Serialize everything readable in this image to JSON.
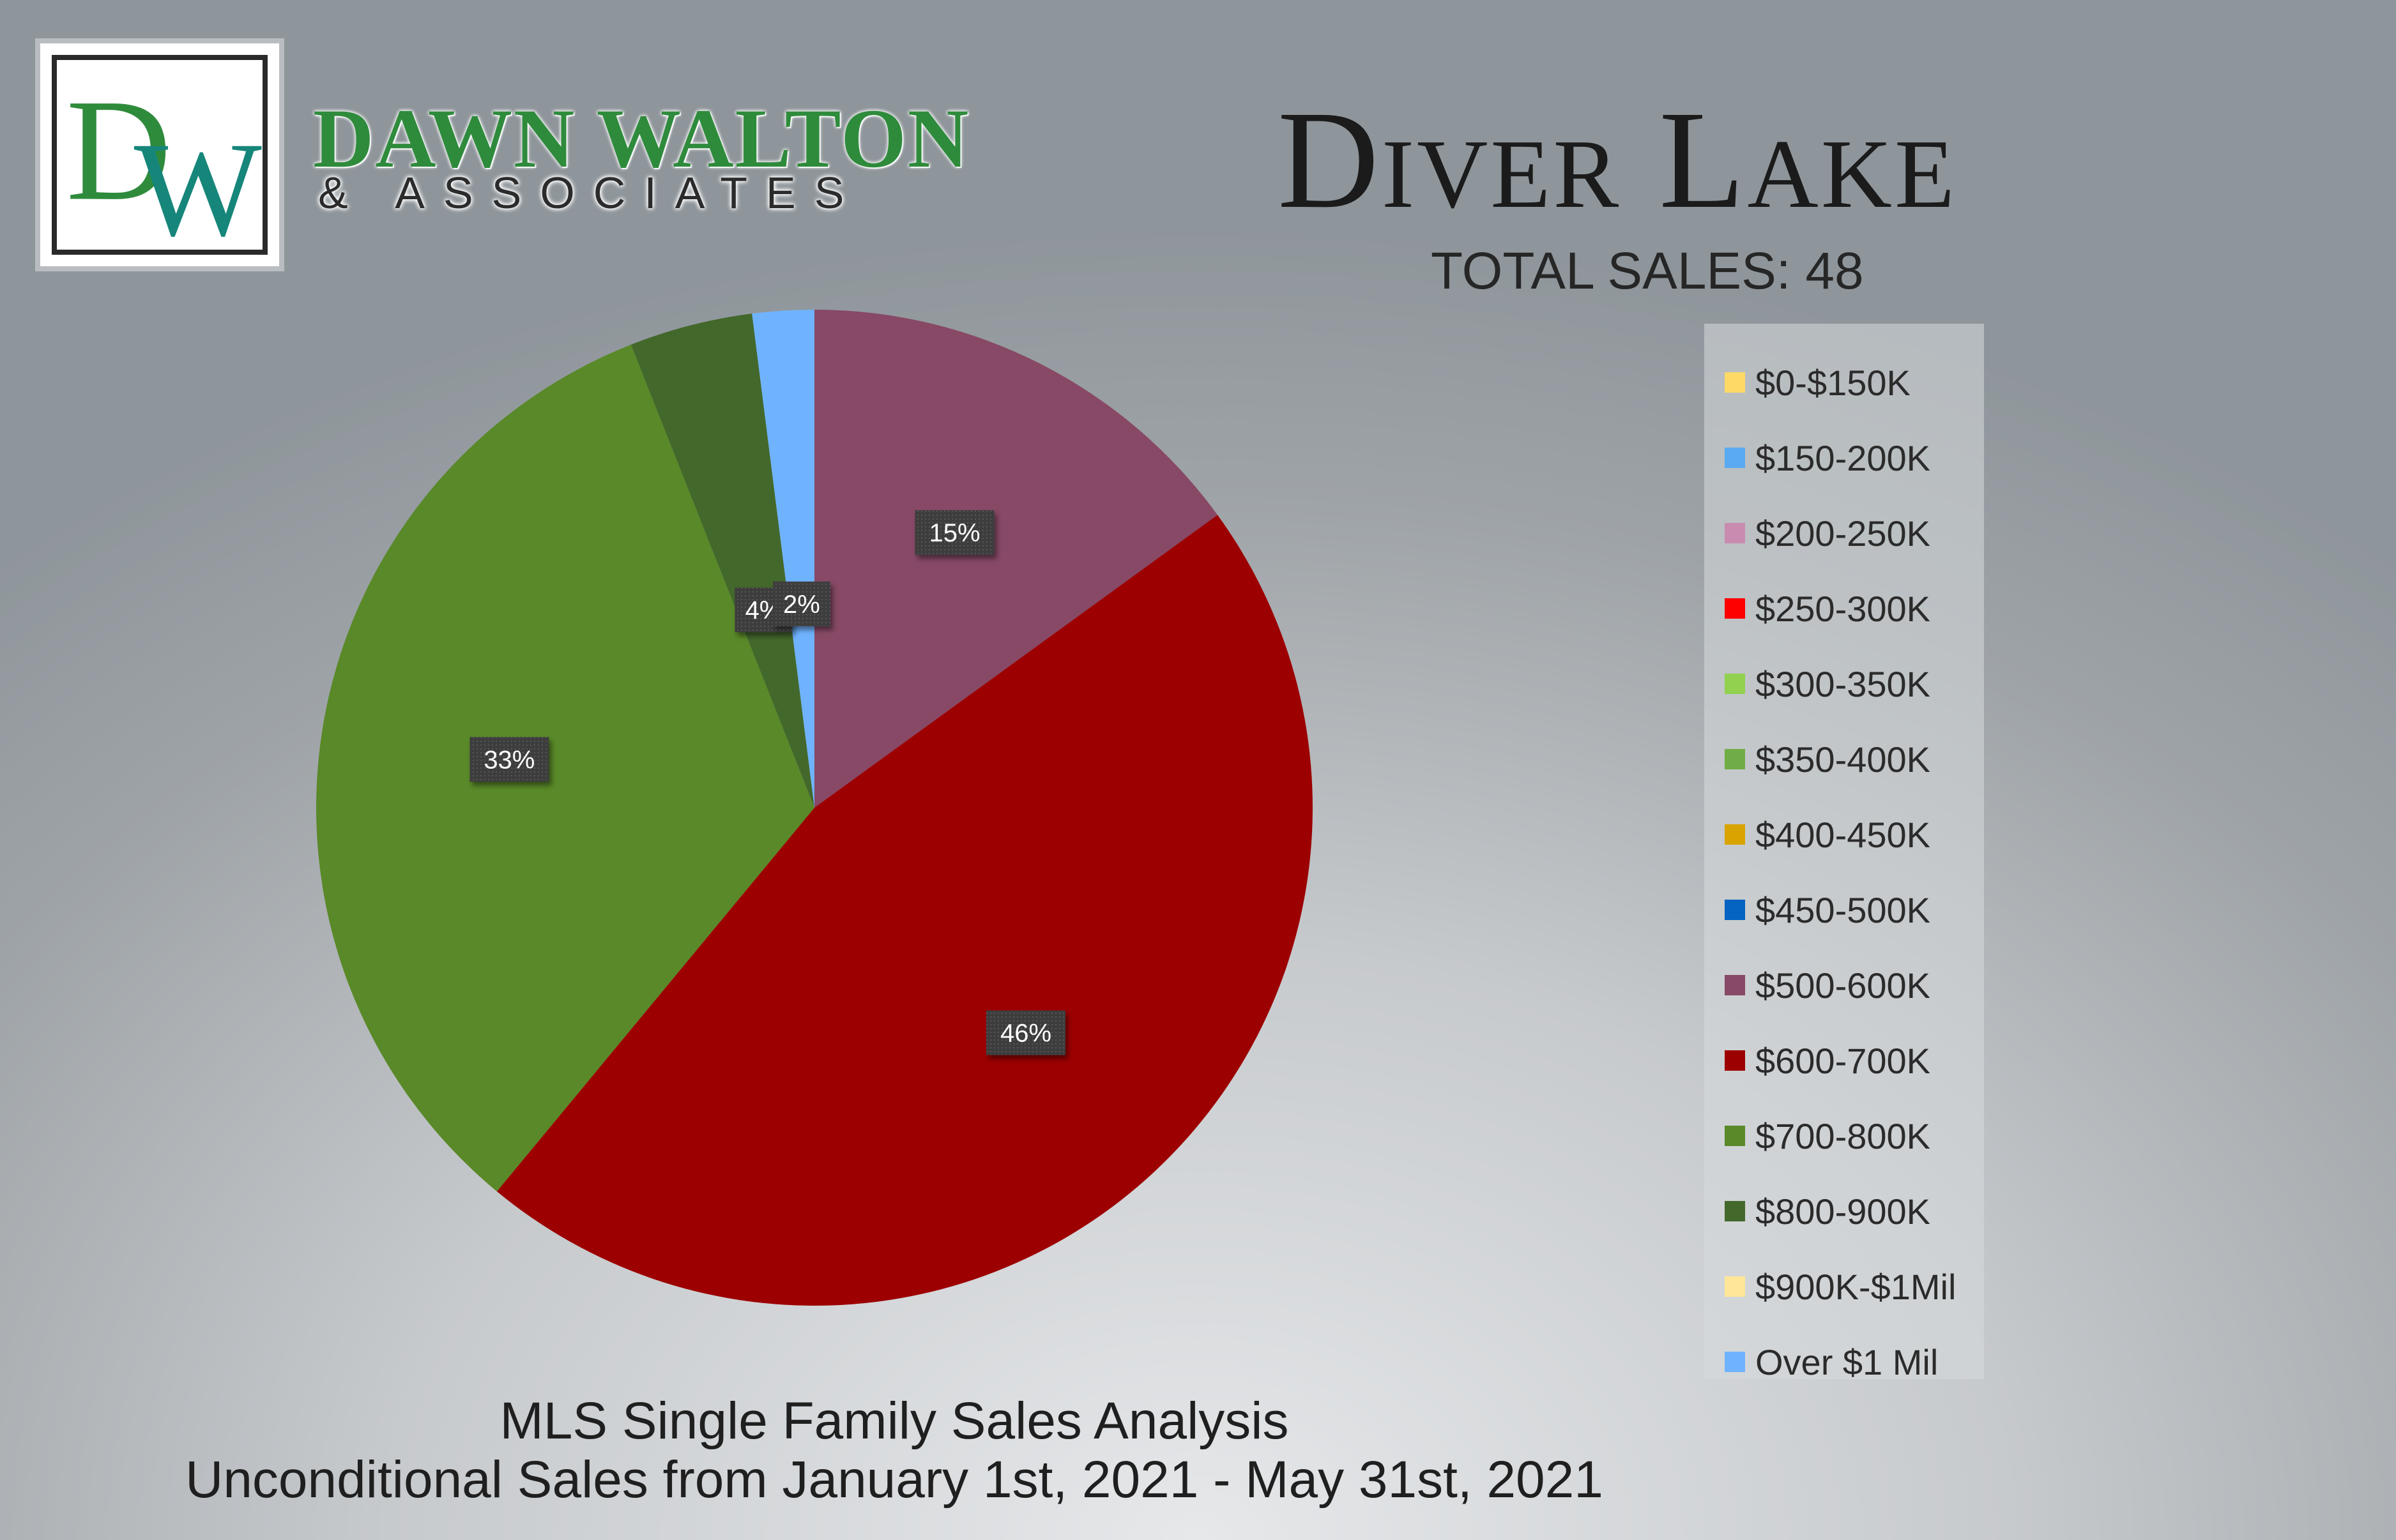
{
  "brand": {
    "name": "DAWN WALTON",
    "sub": "& ASSOCIATES",
    "monogram": "DW"
  },
  "header": {
    "title": "Diver Lake",
    "total_sales": "TOTAL SALES: 48"
  },
  "footer": {
    "line1": "MLS Single Family Sales Analysis",
    "line2": "Unconditional Sales from January 1st, 2021 - May 31st, 2021"
  },
  "chart_data": {
    "type": "pie",
    "title": "",
    "categories": [
      "$0-$150K",
      "$150-200K",
      "$200-250K",
      "$250-300K",
      "$300-350K",
      "$350-400K",
      "$400-450K",
      "$450-500K",
      "$500-600K",
      "$600-700K",
      "$700-800K",
      "$800-900K",
      "$900K-$1Mil",
      "Over $1 Mil"
    ],
    "values": [
      0,
      0,
      0,
      0,
      0,
      0,
      0,
      0,
      15,
      46,
      33,
      4,
      0,
      2
    ],
    "value_labels": [
      "0%",
      "0%",
      "0%",
      "0%",
      "0%",
      "0%",
      "0%",
      "0%",
      "15%",
      "46%",
      "33%",
      "4%",
      "0%",
      "2%"
    ],
    "colors": [
      "#ffd966",
      "#5aaaf2",
      "#c98cb0",
      "#ff0000",
      "#92d050",
      "#70ad47",
      "#d9a400",
      "#0563c1",
      "#874966",
      "#9c0000",
      "#598928",
      "#43682b",
      "#ffe699",
      "#6fb3ff"
    ],
    "legend_position": "right"
  }
}
